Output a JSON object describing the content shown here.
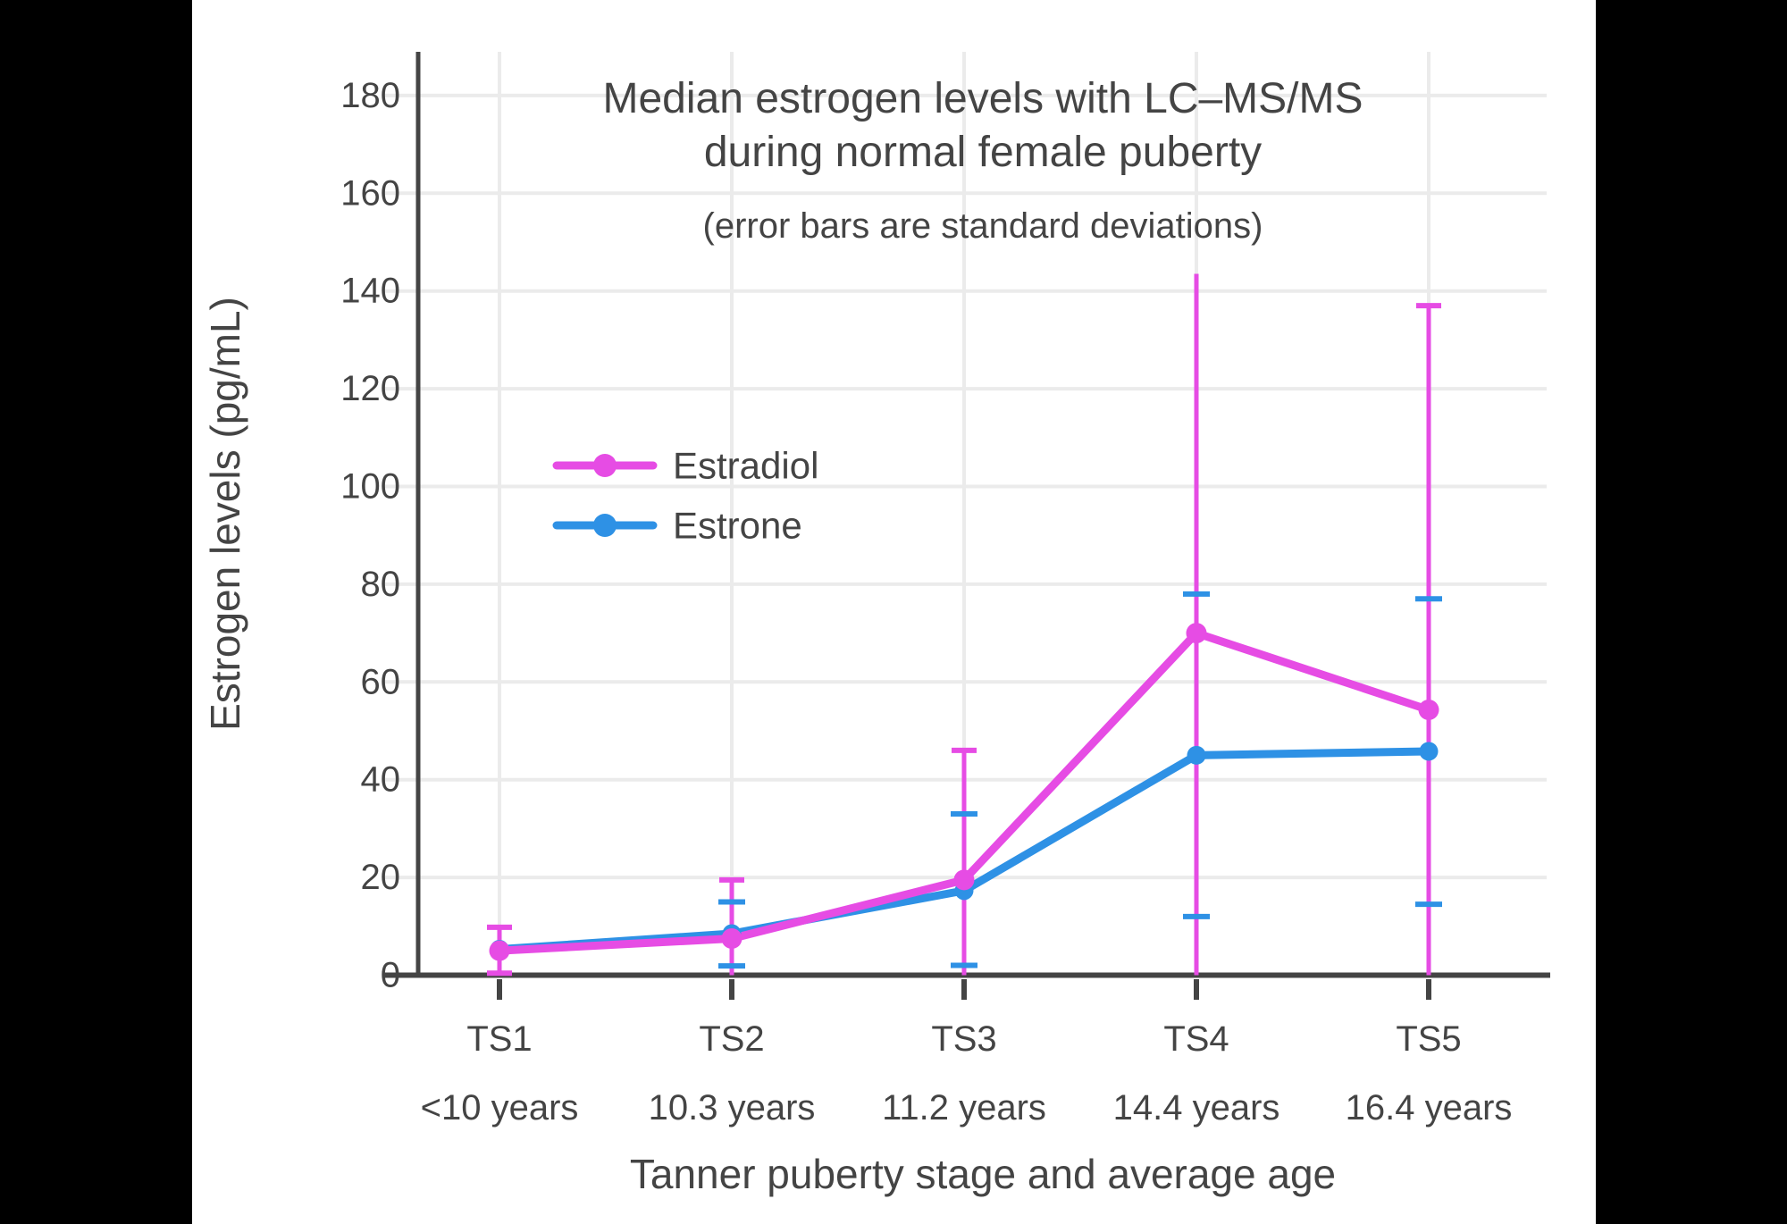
{
  "page": {
    "background": "#000000",
    "panel_background": "#ffffff",
    "text_color": "#444444",
    "grid_color": "#ebebeb",
    "axis_color": "#444444"
  },
  "chart_data": {
    "type": "line",
    "title_line1": "Median estrogen levels with LC–MS/MS",
    "title_line2": "during normal female puberty",
    "subtitle": "(error bars are standard deviations)",
    "xlabel": "Tanner puberty stage and average age",
    "ylabel": "Estrogen levels (pg/mL)",
    "ylim": [
      0,
      190
    ],
    "yticks": [
      0,
      20,
      40,
      60,
      80,
      100,
      120,
      140,
      160,
      180
    ],
    "grid": true,
    "legend_position": "inside-upper-left",
    "categories": [
      "TS1",
      "TS2",
      "TS3",
      "TS4",
      "TS5"
    ],
    "category_ages": [
      "<10 years",
      "10.3 years",
      "11.2 years",
      "14.4 years",
      "16.4 years"
    ],
    "series": [
      {
        "name": "Estradiol",
        "color": "#e64ce4",
        "values": [
          5,
          7.5,
          19.5,
          70,
          54.3
        ],
        "error_top": [
          9.8,
          19.5,
          46,
          143.5,
          137
        ],
        "error_bottom": [
          0.4,
          0,
          0,
          0,
          0
        ],
        "cap_top": [
          true,
          true,
          true,
          false,
          true
        ],
        "cap_bottom": [
          true,
          false,
          false,
          false,
          false
        ]
      },
      {
        "name": "Estrone",
        "color": "#2e91e5",
        "values": [
          5.3,
          8.5,
          17.3,
          45,
          45.8
        ],
        "error_top": [
          null,
          15,
          33,
          78,
          77
        ],
        "error_bottom": [
          null,
          1.9,
          2,
          12,
          14.5
        ],
        "cap_top": [
          false,
          true,
          true,
          true,
          true
        ],
        "cap_bottom": [
          false,
          true,
          true,
          true,
          true
        ]
      }
    ]
  }
}
